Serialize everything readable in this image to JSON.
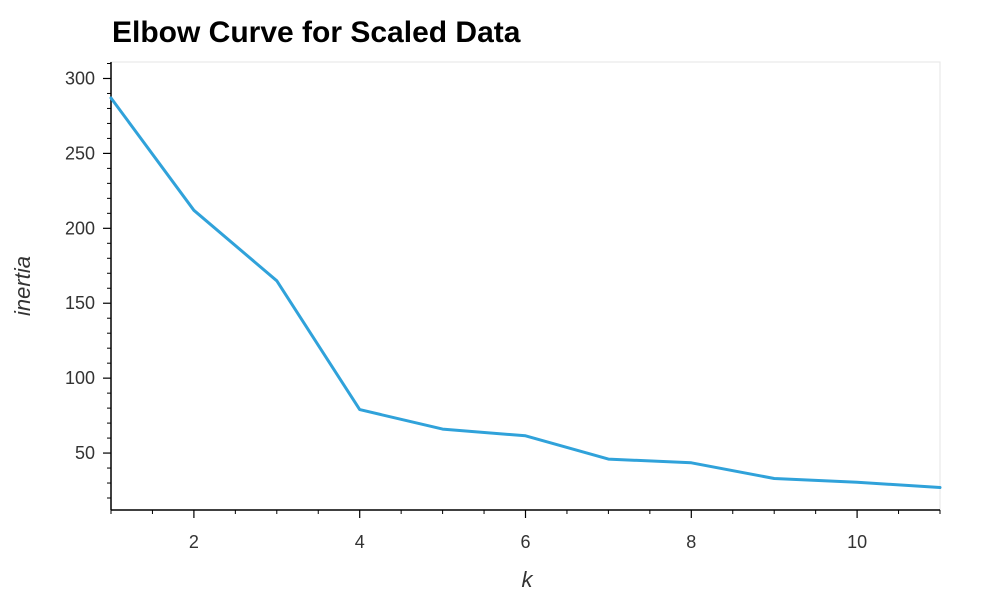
{
  "chart_data": {
    "type": "line",
    "title": "Elbow Curve for Scaled Data",
    "xlabel": "k",
    "ylabel": "inertia",
    "x": [
      1,
      2,
      3,
      4,
      5,
      6,
      7,
      8,
      9,
      10,
      11
    ],
    "series": [
      {
        "values": [
          287,
          212,
          165,
          79,
          66,
          61.5,
          46,
          43.5,
          33,
          30.5,
          27
        ]
      }
    ],
    "xlim": [
      1,
      11
    ],
    "ylim": [
      12,
      311
    ],
    "xticks": [
      2,
      4,
      6,
      8,
      10
    ],
    "yticks": [
      50,
      100,
      150,
      200,
      250,
      300
    ],
    "line_color": "#30a2da",
    "grid": false,
    "legend": "none"
  }
}
